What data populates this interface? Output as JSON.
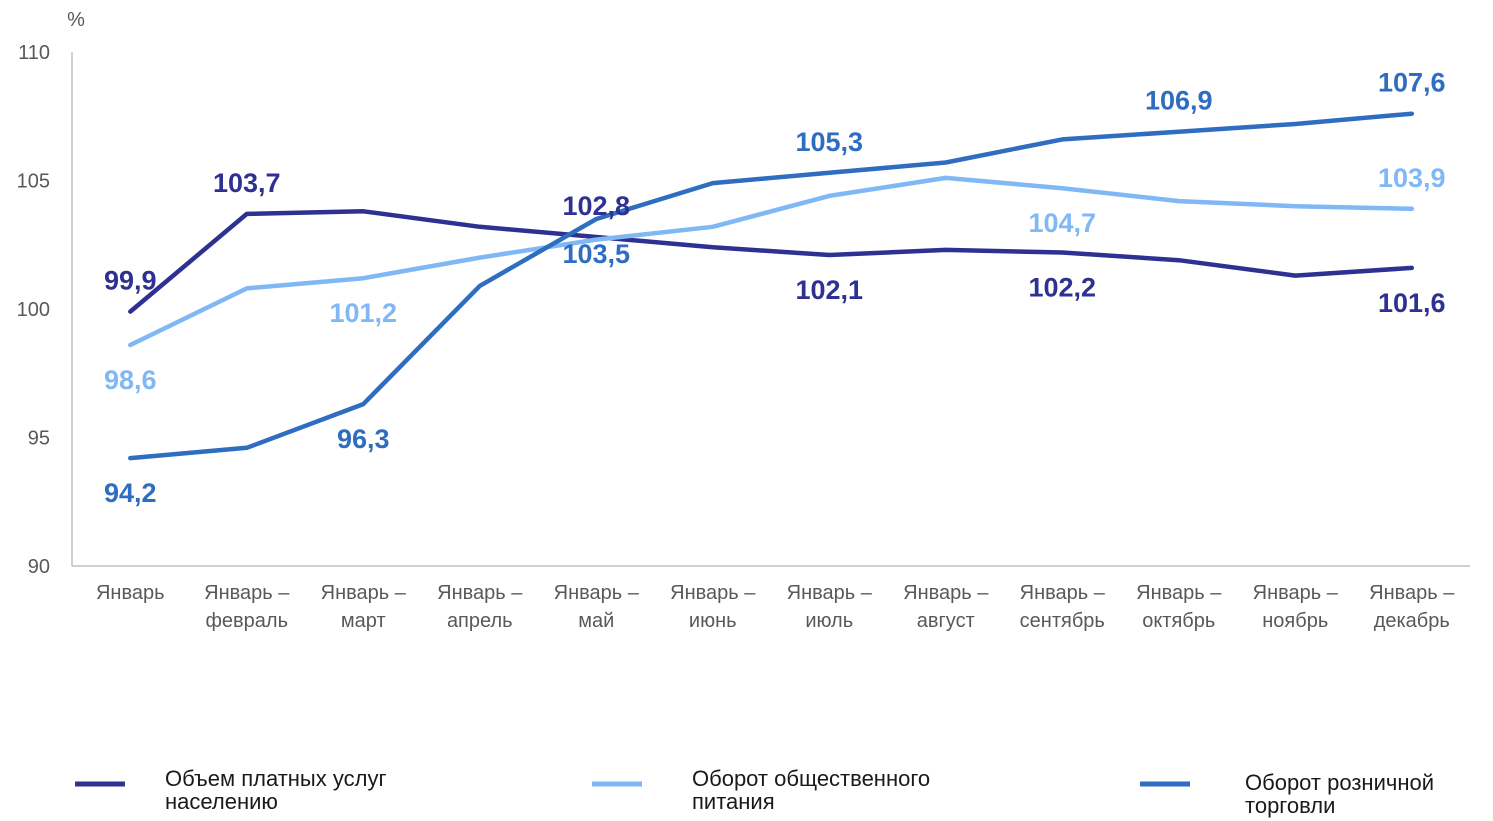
{
  "chart_data": {
    "type": "line",
    "ylabel": "%",
    "ylim": [
      90,
      110
    ],
    "yticks": [
      90,
      95,
      100,
      105,
      110
    ],
    "grid": false,
    "legend_position": "bottom",
    "categories": [
      [
        "Январь"
      ],
      [
        "Январь –",
        "февраль"
      ],
      [
        "Январь –",
        "март"
      ],
      [
        "Январь –",
        "апрель"
      ],
      [
        "Январь –",
        "май"
      ],
      [
        "Январь –",
        "июнь"
      ],
      [
        "Январь –",
        "июль"
      ],
      [
        "Январь –",
        "август"
      ],
      [
        "Январь –",
        "сентябрь"
      ],
      [
        "Январь –",
        "октябрь"
      ],
      [
        "Январь –",
        "ноябрь"
      ],
      [
        "Январь –",
        "декабрь"
      ]
    ],
    "series": [
      {
        "name": "Объем платных услуг населению",
        "name_lines": [
          "Объем платных услуг",
          "населению"
        ],
        "color": "#2E3192",
        "values": [
          99.9,
          103.7,
          103.8,
          103.2,
          102.8,
          102.4,
          102.1,
          102.3,
          102.2,
          101.9,
          101.3,
          101.6
        ],
        "labels": [
          {
            "index": 0,
            "text": "99,9",
            "pos": "above"
          },
          {
            "index": 1,
            "text": "103,7",
            "pos": "above"
          },
          {
            "index": 4,
            "text": "102,8",
            "pos": "above"
          },
          {
            "index": 6,
            "text": "102,1",
            "pos": "below"
          },
          {
            "index": 8,
            "text": "102,2",
            "pos": "below"
          },
          {
            "index": 11,
            "text": "101,6",
            "pos": "below"
          }
        ]
      },
      {
        "name": "Оборот общественного питания",
        "name_lines": [
          "Оборот общественного",
          "питания"
        ],
        "color": "#7FB8F5",
        "values": [
          98.6,
          100.8,
          101.2,
          102.0,
          102.7,
          103.2,
          104.4,
          105.1,
          104.7,
          104.2,
          104.0,
          103.9
        ],
        "labels": [
          {
            "index": 0,
            "text": "98,6",
            "pos": "below"
          },
          {
            "index": 2,
            "text": "101,2",
            "pos": "below"
          },
          {
            "index": 8,
            "text": "104,7",
            "pos": "below"
          },
          {
            "index": 11,
            "text": "103,9",
            "pos": "above"
          }
        ]
      },
      {
        "name": "Оборот розничной торговли",
        "name_lines": [
          "Оборот розничной",
          "торговли"
        ],
        "color": "#2E6DBF",
        "values": [
          94.2,
          94.6,
          96.3,
          100.9,
          103.5,
          104.9,
          105.3,
          105.7,
          106.6,
          106.9,
          107.2,
          107.6
        ],
        "labels": [
          {
            "index": 0,
            "text": "94,2",
            "pos": "below"
          },
          {
            "index": 2,
            "text": "96,3",
            "pos": "below"
          },
          {
            "index": 4,
            "text": "103,5",
            "pos": "below"
          },
          {
            "index": 6,
            "text": "105,3",
            "pos": "above"
          },
          {
            "index": 9,
            "text": "106,9",
            "pos": "above"
          },
          {
            "index": 11,
            "text": "107,6",
            "pos": "above"
          }
        ]
      }
    ]
  }
}
